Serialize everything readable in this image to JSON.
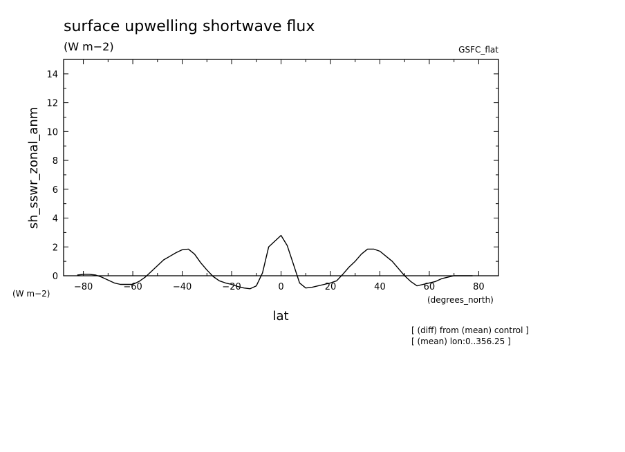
{
  "chart_data": {
    "type": "line",
    "title": "surface upwelling shortwave flux",
    "units_label": "(W m−2)",
    "model_label": "GSFC_flat",
    "xlabel": "lat",
    "ylabel": "sh_sswr_zonal_anm",
    "y_units": "(W m−2)",
    "x_units": "(degrees_north)",
    "xlim": [
      -88,
      88
    ],
    "ylim": [
      0,
      15
    ],
    "xticks": [
      -80,
      -60,
      -40,
      -20,
      0,
      20,
      40,
      60,
      80
    ],
    "yticks": [
      0,
      2,
      4,
      6,
      8,
      10,
      12,
      14
    ],
    "notes": [
      "[ (diff) from (mean) control ]",
      "[ (mean) lon:0..356.25 ]"
    ],
    "grid": false,
    "series": [
      {
        "x": [
          -82.5,
          -80,
          -77.5,
          -75,
          -72.5,
          -70,
          -67.5,
          -65,
          -62.5,
          -60,
          -57.5,
          -55,
          -52.5,
          -50,
          -47.5,
          -45,
          -42.5,
          -40,
          -37.5,
          -35,
          -32.5,
          -30,
          -27.5,
          -25,
          -22.5,
          -20,
          -17.5,
          -15,
          -12.5,
          -10,
          -7.5,
          -5,
          -2.5,
          0,
          2.5,
          5,
          7.5,
          10,
          12.5,
          15,
          17.5,
          20,
          22.5,
          25,
          27.5,
          30,
          32.5,
          35,
          37.5,
          40,
          42.5,
          45,
          47.5,
          50,
          52.5,
          55,
          57.5,
          60,
          62.5,
          65,
          67.5,
          70,
          72.5,
          75,
          77.5
        ],
        "y": [
          0.05,
          0.1,
          0.1,
          0.05,
          -0.1,
          -0.3,
          -0.5,
          -0.6,
          -0.6,
          -0.6,
          -0.4,
          -0.1,
          0.3,
          0.7,
          1.1,
          1.35,
          1.6,
          1.8,
          1.85,
          1.5,
          0.9,
          0.4,
          -0.05,
          -0.35,
          -0.5,
          -0.6,
          -0.75,
          -0.85,
          -0.9,
          -0.7,
          0.2,
          2.0,
          2.4,
          2.8,
          2.1,
          0.8,
          -0.5,
          -0.85,
          -0.8,
          -0.7,
          -0.6,
          -0.5,
          -0.35,
          0.1,
          0.6,
          1.0,
          1.5,
          1.85,
          1.85,
          1.7,
          1.35,
          1.0,
          0.5,
          0.0,
          -0.4,
          -0.7,
          -0.6,
          -0.5,
          -0.4,
          -0.2,
          -0.1,
          0.0,
          0.0,
          0.0,
          0.0
        ]
      }
    ]
  }
}
